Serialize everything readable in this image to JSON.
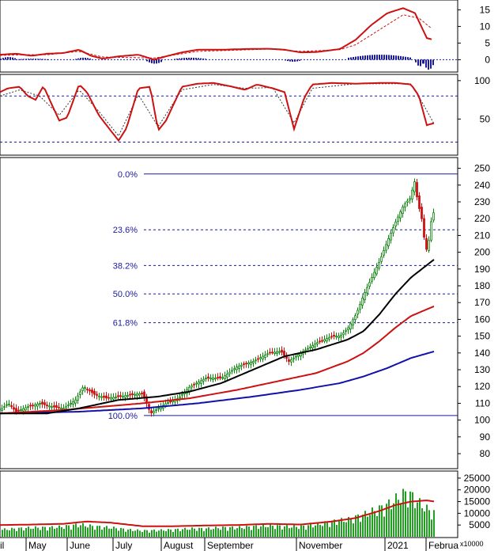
{
  "chart_data": {
    "type": "stock-technical",
    "x_labels": [
      "May",
      "June",
      "July",
      "August",
      "September",
      "November",
      "2021",
      "Februa"
    ],
    "x_label_partial_left": "il",
    "colors": {
      "up": "#0a8a0a",
      "down": "#d01010",
      "ma_short": "#000000",
      "ma_mid": "#cc1111",
      "ma_long": "#1111aa",
      "fib_line": "#1a1aa0",
      "volume": "#1fa01f",
      "volume_ma": "#cc1111",
      "macd_hist_pos": "#1a1aa0",
      "macd_hist_neg": "#1a1aa0",
      "macd": "#cc1111",
      "signal": "#cc1111",
      "stoch": "#cc1111"
    },
    "macd_panel": {
      "y_ticks": [
        15,
        10,
        5,
        0
      ],
      "ylim": [
        -3,
        17
      ],
      "macd_points": [
        [
          0,
          1.5
        ],
        [
          20,
          1.8
        ],
        [
          40,
          1.2
        ],
        [
          60,
          1.8
        ],
        [
          80,
          2.0
        ],
        [
          100,
          3.0
        ],
        [
          115,
          1.2
        ],
        [
          130,
          0.3
        ],
        [
          150,
          1.0
        ],
        [
          175,
          1.5
        ],
        [
          195,
          0.0
        ],
        [
          210,
          1.0
        ],
        [
          230,
          2.2
        ],
        [
          250,
          3.0
        ],
        [
          280,
          3.0
        ],
        [
          310,
          3.2
        ],
        [
          340,
          3.3
        ],
        [
          360,
          3.0
        ],
        [
          380,
          2.2
        ],
        [
          400,
          2.3
        ],
        [
          430,
          3.2
        ],
        [
          450,
          6.0
        ],
        [
          470,
          10.5
        ],
        [
          490,
          14.0
        ],
        [
          510,
          15.5
        ],
        [
          525,
          14.0
        ],
        [
          535,
          9.0
        ],
        [
          540,
          6.5
        ],
        [
          548,
          6.0
        ]
      ],
      "signal_points": [
        [
          0,
          1.3
        ],
        [
          30,
          1.5
        ],
        [
          60,
          1.5
        ],
        [
          100,
          2.5
        ],
        [
          130,
          0.8
        ],
        [
          195,
          0.5
        ],
        [
          250,
          2.5
        ],
        [
          340,
          3.2
        ],
        [
          380,
          2.5
        ],
        [
          430,
          3.0
        ],
        [
          450,
          4.5
        ],
        [
          480,
          9.0
        ],
        [
          510,
          13.5
        ],
        [
          530,
          12.5
        ],
        [
          548,
          9.0
        ]
      ],
      "hist_segments": [
        [
          0,
          20,
          0.8
        ],
        [
          20,
          60,
          0.3
        ],
        [
          95,
          115,
          0.6
        ],
        [
          185,
          205,
          -1.2
        ],
        [
          220,
          260,
          0.6
        ],
        [
          360,
          380,
          -0.6
        ],
        [
          440,
          520,
          1.5
        ],
        [
          525,
          535,
          -2.0
        ],
        [
          535,
          548,
          -3.0
        ]
      ]
    },
    "stoch_panel": {
      "y_ticks": [
        100,
        50
      ],
      "ylim": [
        5,
        105
      ],
      "ref_levels": [
        80,
        20
      ],
      "k_points": [
        [
          0,
          85
        ],
        [
          10,
          90
        ],
        [
          25,
          92
        ],
        [
          35,
          80
        ],
        [
          45,
          75
        ],
        [
          55,
          93
        ],
        [
          65,
          70
        ],
        [
          75,
          48
        ],
        [
          85,
          52
        ],
        [
          100,
          95
        ],
        [
          110,
          85
        ],
        [
          125,
          55
        ],
        [
          140,
          35
        ],
        [
          150,
          22
        ],
        [
          160,
          38
        ],
        [
          175,
          90
        ],
        [
          190,
          92
        ],
        [
          200,
          35
        ],
        [
          210,
          48
        ],
        [
          230,
          92
        ],
        [
          250,
          96
        ],
        [
          270,
          97
        ],
        [
          290,
          93
        ],
        [
          310,
          88
        ],
        [
          325,
          95
        ],
        [
          345,
          90
        ],
        [
          360,
          85
        ],
        [
          372,
          37
        ],
        [
          385,
          78
        ],
        [
          395,
          95
        ],
        [
          420,
          97
        ],
        [
          450,
          96
        ],
        [
          480,
          97
        ],
        [
          500,
          97
        ],
        [
          520,
          95
        ],
        [
          530,
          80
        ],
        [
          540,
          42
        ],
        [
          550,
          45
        ]
      ],
      "d_points": [
        [
          0,
          80
        ],
        [
          25,
          88
        ],
        [
          50,
          80
        ],
        [
          75,
          55
        ],
        [
          100,
          88
        ],
        [
          125,
          60
        ],
        [
          150,
          28
        ],
        [
          175,
          82
        ],
        [
          200,
          40
        ],
        [
          230,
          88
        ],
        [
          270,
          95
        ],
        [
          310,
          90
        ],
        [
          345,
          91
        ],
        [
          372,
          45
        ],
        [
          395,
          90
        ],
        [
          450,
          96
        ],
        [
          520,
          96
        ],
        [
          535,
          70
        ],
        [
          550,
          42
        ]
      ]
    },
    "price_panel": {
      "y_ticks": [
        250,
        240,
        230,
        220,
        210,
        200,
        190,
        180,
        170,
        160,
        150,
        140,
        130,
        120,
        110,
        100,
        90,
        80
      ],
      "ylim": [
        72,
        255
      ],
      "fib_levels": [
        {
          "label": "0.0%",
          "value": 246.6
        },
        {
          "label": "23.6%",
          "value": 213.4
        },
        {
          "label": "38.2%",
          "value": 192.1
        },
        {
          "label": "50.0%",
          "value": 175.2
        },
        {
          "label": "61.8%",
          "value": 158.0
        },
        {
          "label": "100.0%",
          "value": 102.7
        }
      ],
      "close_points": [
        [
          0,
          106
        ],
        [
          10,
          110
        ],
        [
          20,
          105
        ],
        [
          35,
          108
        ],
        [
          50,
          110
        ],
        [
          65,
          108
        ],
        [
          80,
          107
        ],
        [
          95,
          112
        ],
        [
          105,
          120
        ],
        [
          120,
          115
        ],
        [
          135,
          113
        ],
        [
          150,
          114
        ],
        [
          165,
          115
        ],
        [
          180,
          116
        ],
        [
          190,
          104
        ],
        [
          200,
          107
        ],
        [
          210,
          110
        ],
        [
          225,
          113
        ],
        [
          240,
          120
        ],
        [
          260,
          125
        ],
        [
          280,
          125
        ],
        [
          300,
          132
        ],
        [
          320,
          135
        ],
        [
          340,
          140
        ],
        [
          355,
          141
        ],
        [
          365,
          135
        ],
        [
          380,
          140
        ],
        [
          400,
          146
        ],
        [
          420,
          150
        ],
        [
          430,
          150
        ],
        [
          440,
          155
        ],
        [
          450,
          163
        ],
        [
          460,
          175
        ],
        [
          470,
          185
        ],
        [
          480,
          195
        ],
        [
          490,
          207
        ],
        [
          500,
          218
        ],
        [
          510,
          228
        ],
        [
          518,
          232
        ],
        [
          524,
          242
        ],
        [
          528,
          230
        ],
        [
          534,
          218
        ],
        [
          538,
          200
        ],
        [
          542,
          207
        ],
        [
          546,
          222
        ],
        [
          550,
          225
        ]
      ],
      "ma_short_points": [
        [
          0,
          104
        ],
        [
          60,
          104
        ],
        [
          100,
          107
        ],
        [
          150,
          112
        ],
        [
          200,
          114
        ],
        [
          240,
          117
        ],
        [
          280,
          122
        ],
        [
          320,
          130
        ],
        [
          360,
          138
        ],
        [
          400,
          142
        ],
        [
          440,
          148
        ],
        [
          460,
          153
        ],
        [
          480,
          163
        ],
        [
          500,
          175
        ],
        [
          520,
          185
        ],
        [
          550,
          196
        ]
      ],
      "ma_mid_points": [
        [
          0,
          104
        ],
        [
          80,
          106
        ],
        [
          130,
          108
        ],
        [
          180,
          110
        ],
        [
          240,
          113
        ],
        [
          300,
          118
        ],
        [
          350,
          123
        ],
        [
          400,
          128
        ],
        [
          440,
          135
        ],
        [
          460,
          140
        ],
        [
          480,
          147
        ],
        [
          500,
          155
        ],
        [
          520,
          162
        ],
        [
          550,
          168
        ]
      ],
      "ma_long_points": [
        [
          0,
          104
        ],
        [
          100,
          105
        ],
        [
          180,
          107
        ],
        [
          250,
          110
        ],
        [
          320,
          114
        ],
        [
          380,
          118
        ],
        [
          430,
          122
        ],
        [
          460,
          126
        ],
        [
          490,
          131
        ],
        [
          520,
          137
        ],
        [
          550,
          141
        ]
      ]
    },
    "volume_panel": {
      "y_ticks": [
        25000,
        20000,
        15000,
        10000,
        5000
      ],
      "unit": "x10000",
      "ylim": [
        0,
        27000
      ],
      "vol_points": [
        [
          0,
          3500
        ],
        [
          20,
          4000
        ],
        [
          40,
          4500
        ],
        [
          60,
          4500
        ],
        [
          80,
          5000
        ],
        [
          100,
          6000
        ],
        [
          120,
          5000
        ],
        [
          140,
          4500
        ],
        [
          160,
          3500
        ],
        [
          180,
          3000
        ],
        [
          200,
          3200
        ],
        [
          220,
          3500
        ],
        [
          240,
          4000
        ],
        [
          260,
          4000
        ],
        [
          280,
          4500
        ],
        [
          300,
          4500
        ],
        [
          320,
          5000
        ],
        [
          340,
          5500
        ],
        [
          360,
          5000
        ],
        [
          380,
          5000
        ],
        [
          400,
          6000
        ],
        [
          420,
          7500
        ],
        [
          440,
          8500
        ],
        [
          460,
          11000
        ],
        [
          480,
          14000
        ],
        [
          495,
          17000
        ],
        [
          505,
          20000
        ],
        [
          515,
          22000
        ],
        [
          525,
          18000
        ],
        [
          535,
          15000
        ],
        [
          545,
          12000
        ]
      ],
      "vol_ma_points": [
        [
          0,
          5000
        ],
        [
          40,
          5200
        ],
        [
          80,
          5500
        ],
        [
          110,
          6500
        ],
        [
          140,
          6000
        ],
        [
          180,
          4500
        ],
        [
          220,
          4500
        ],
        [
          260,
          4800
        ],
        [
          300,
          5000
        ],
        [
          340,
          5500
        ],
        [
          380,
          5200
        ],
        [
          420,
          6500
        ],
        [
          450,
          8000
        ],
        [
          480,
          11000
        ],
        [
          500,
          13500
        ],
        [
          520,
          15000
        ],
        [
          540,
          15500
        ],
        [
          550,
          15000
        ]
      ]
    }
  }
}
